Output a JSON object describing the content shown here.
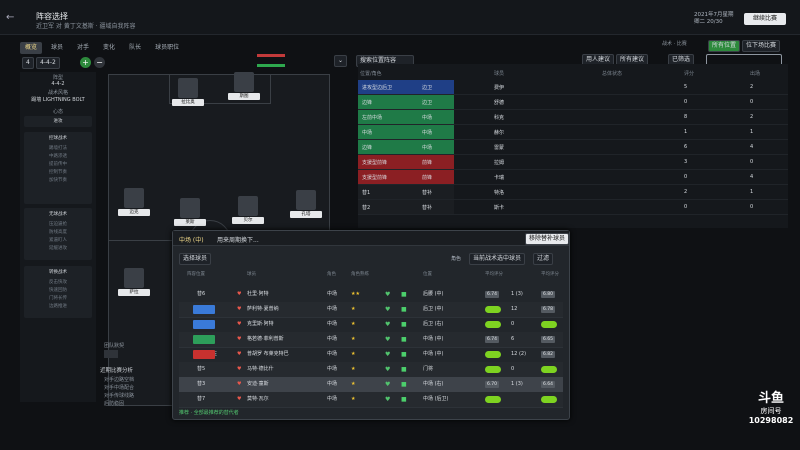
{
  "topbar": {
    "title": "阵容选择",
    "subtitle": "近卫军 对 黄丁文基斯 · 疆域自我阵容",
    "date_line1": "2021年7月星期",
    "date_line2": "卿二 20/30",
    "continue": "继续比赛"
  },
  "tabs": [
    "概览",
    "球员",
    "对手",
    "变化",
    "队长",
    "球员职位"
  ],
  "toolbar": {
    "formation_a": "4",
    "formation_b": "4-4-2",
    "search_label": "搜索位置阵容"
  },
  "left_panel": {
    "label1": "阵型",
    "value1": "4-4-2",
    "label2": "战术风格",
    "value2": "踢墙 LIGHTNING BOLT",
    "label3": "心态",
    "value3": "进攻",
    "box1_title": "控球战术",
    "box1_lines": [
      "踢墙打法",
      "中路渗透",
      "提前传中",
      "控制节奏",
      "加快节奏"
    ],
    "box2_title": "无球战术",
    "box2_lines": [
      "压迫逼抢",
      "防线高度",
      "紧逼盯人",
      "延缓进攻"
    ],
    "box3_title": "转换战术",
    "box3_lines": [
      "反击快攻",
      "快速回防",
      "门将长传",
      "边路推进"
    ]
  },
  "bottom_left": {
    "title": "团队默契",
    "title2": "近期比赛分析",
    "items": [
      "对手边路空档",
      "对手中场配合",
      "对手传球线路",
      "后防稳固"
    ]
  },
  "pitch_players": [
    {
      "name": "拉比奥",
      "rating": "6.5"
    },
    {
      "name": "斯图",
      "rating": "6.6"
    },
    {
      "name": "迈克",
      "rating": "7.0"
    },
    {
      "name": "莱斯",
      "rating": "6.8"
    },
    {
      "name": "贝尔",
      "rating": "6.4"
    },
    {
      "name": "孔塔",
      "rating": "6.6"
    },
    {
      "name": "萨拉",
      "rating": "6.9"
    },
    {
      "name": "马里",
      "rating": "6.7"
    }
  ],
  "right_tabs": {
    "a": "所有位置",
    "b": "位下场比赛"
  },
  "right_buttons": {
    "left": "用人建议",
    "mid": "所有建议",
    "search": "已筛选"
  },
  "right_header": [
    "位置/角色",
    "角色",
    "球员",
    "总体状态",
    "年龄",
    "评分",
    "出场"
  ],
  "right_rows": [
    {
      "pos": "进攻型边后卫",
      "role": "边卫",
      "player": "费伊",
      "stat": "5",
      "apps": "2"
    },
    {
      "pos": "边锋",
      "role": "边卫",
      "player": "舒德",
      "stat": "0",
      "apps": "0"
    },
    {
      "pos": "左前中场",
      "role": "中场",
      "player": "科克",
      "stat": "8",
      "apps": "2"
    },
    {
      "pos": "中场",
      "role": "中场",
      "player": "赫尔",
      "stat": "1",
      "apps": "1"
    },
    {
      "pos": "边锋",
      "role": "中场",
      "player": "雷蒙",
      "stat": "6",
      "apps": "4"
    },
    {
      "pos": "支援型前锋",
      "role": "前锋",
      "player": "拉姆",
      "stat": "3",
      "apps": "0"
    },
    {
      "pos": "支援型前锋",
      "role": "前锋",
      "player": "卡瑞",
      "stat": "0",
      "apps": "4"
    },
    {
      "pos": "替1",
      "role": "替补",
      "player": "特洛",
      "stat": "2",
      "apps": "1"
    },
    {
      "pos": "替2",
      "role": "替补",
      "player": "斯卡",
      "stat": "0",
      "apps": "0"
    }
  ],
  "modal": {
    "position": "中场 (中)",
    "subtitle": "用来周期换下...",
    "remove_btn": "移除替补球员",
    "choose_label": "选择球员",
    "role_label": "角色",
    "role_value": "当前战术选中球员",
    "filter": "过滤",
    "col_headers": [
      "阵容位置",
      "号码",
      "球员",
      "角色",
      "角色熟练",
      "状态",
      "合练",
      "位置",
      "技能",
      "平均评分",
      "出场",
      "平均评分"
    ],
    "rows": [
      {
        "slot": "替6",
        "badge": "",
        "name": "杜里·阿特",
        "role": "中场",
        "stars": "★★",
        "pos": "后腰 (中)",
        "avg": "6.74",
        "apps": "1 (3)",
        "rating": "6.80",
        "selected": false
      },
      {
        "slot": "后卫中",
        "badge": "#3a7ad8",
        "name": "萨利特·夏普纳",
        "role": "中场",
        "stars": "★",
        "pos": "后卫 (中)",
        "avg": "",
        "apps": "12",
        "rating": "6.78",
        "selected": false
      },
      {
        "slot": "后卫右",
        "badge": "#3a7ad8",
        "name": "克里斯·阿特",
        "role": "中场",
        "stars": "★",
        "pos": "后卫 (右)",
        "avg": "",
        "apps": "0",
        "rating": "",
        "selected": false
      },
      {
        "slot": "中场左",
        "badge": "#2d9e5a",
        "name": "格若德·菲利普斯",
        "role": "中场",
        "stars": "★",
        "pos": "中场 (中)",
        "avg": "6.74",
        "apps": "6",
        "rating": "6.65",
        "selected": false
      },
      {
        "slot": "前锋中左",
        "badge": "#c8312f",
        "name": "普胡罗 布莱克特巴",
        "role": "中场",
        "stars": "★",
        "pos": "中场 (中)",
        "avg": "",
        "apps": "12 (2)",
        "rating": "6.82",
        "selected": false
      },
      {
        "slot": "替5",
        "badge": "",
        "name": "马特·德比什",
        "role": "中场",
        "stars": "★",
        "pos": "门将",
        "avg": "",
        "apps": "0",
        "rating": "",
        "selected": false
      },
      {
        "slot": "替3",
        "badge": "",
        "name": "安迪·童斯",
        "role": "中场",
        "stars": "★",
        "pos": "中场 (右)",
        "avg": "6.70",
        "apps": "1 (3)",
        "rating": "6.64",
        "selected": true
      },
      {
        "slot": "替7",
        "badge": "",
        "name": "莫特·瓦尔",
        "role": "中场",
        "stars": "★",
        "pos": "中场 (后卫)",
        "avg": "",
        "apps": "",
        "rating": "",
        "selected": false
      }
    ],
    "footer": "推荐 · 全部最推荐的替代者"
  },
  "logo": {
    "line1": "斗鱼",
    "line2": "房间号",
    "line3": "10298082"
  }
}
